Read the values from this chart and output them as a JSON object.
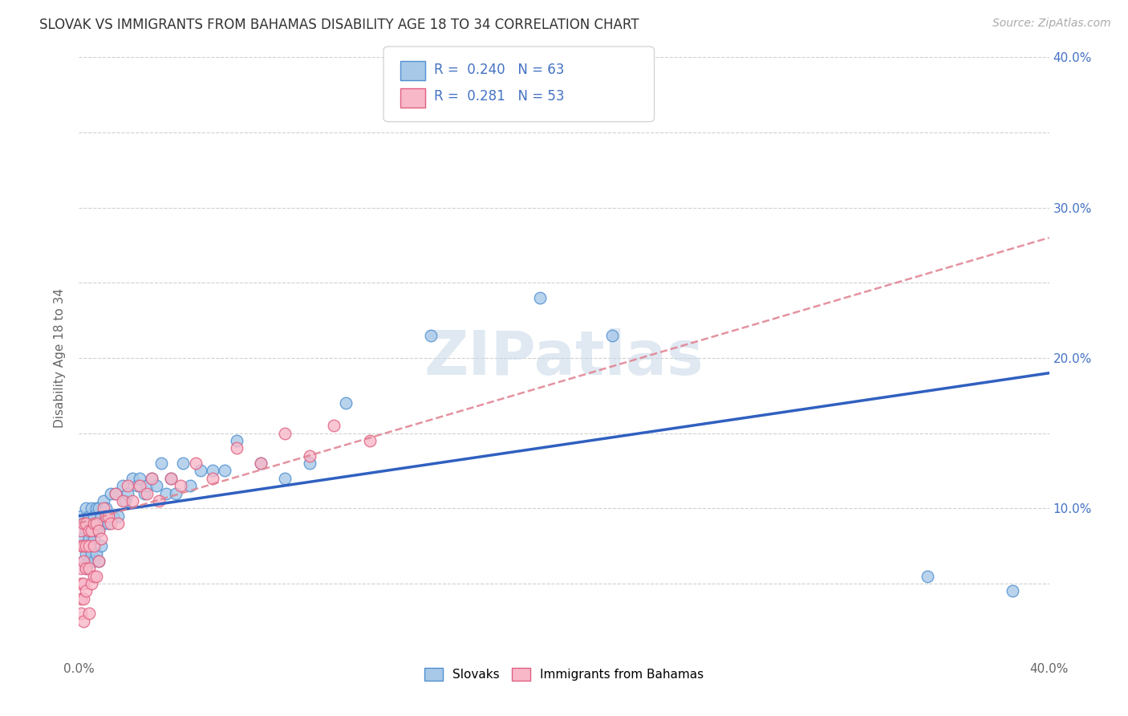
{
  "title": "SLOVAK VS IMMIGRANTS FROM BAHAMAS DISABILITY AGE 18 TO 34 CORRELATION CHART",
  "source": "Source: ZipAtlas.com",
  "ylabel": "Disability Age 18 to 34",
  "xlim": [
    0.0,
    0.4
  ],
  "ylim": [
    0.0,
    0.4
  ],
  "grid_color": "#d0d0d0",
  "background_color": "#ffffff",
  "watermark": "ZIPatlas",
  "legend_R1": "0.240",
  "legend_N1": "63",
  "legend_R2": "0.281",
  "legend_N2": "53",
  "color_slovak_fill": "#a8c8e8",
  "color_slovak_edge": "#5090d0",
  "color_bahamas_fill": "#f8b8c8",
  "color_bahamas_edge": "#e06080",
  "color_line_slovak": "#3060c0",
  "color_line_bahamas": "#e08090",
  "slovak_x": [
    0.001,
    0.001,
    0.002,
    0.002,
    0.002,
    0.003,
    0.003,
    0.003,
    0.003,
    0.004,
    0.004,
    0.004,
    0.005,
    0.005,
    0.005,
    0.006,
    0.006,
    0.006,
    0.007,
    0.007,
    0.007,
    0.008,
    0.008,
    0.008,
    0.009,
    0.009,
    0.01,
    0.01,
    0.011,
    0.012,
    0.013,
    0.014,
    0.015,
    0.016,
    0.018,
    0.019,
    0.02,
    0.022,
    0.024,
    0.025,
    0.027,
    0.028,
    0.03,
    0.032,
    0.034,
    0.036,
    0.038,
    0.04,
    0.043,
    0.046,
    0.05,
    0.055,
    0.06,
    0.065,
    0.075,
    0.085,
    0.095,
    0.11,
    0.145,
    0.19,
    0.22,
    0.35,
    0.385
  ],
  "slovak_y": [
    0.095,
    0.08,
    0.09,
    0.075,
    0.065,
    0.1,
    0.085,
    0.07,
    0.06,
    0.095,
    0.08,
    0.065,
    0.1,
    0.085,
    0.07,
    0.095,
    0.08,
    0.065,
    0.1,
    0.085,
    0.07,
    0.1,
    0.085,
    0.065,
    0.095,
    0.075,
    0.105,
    0.09,
    0.1,
    0.09,
    0.11,
    0.095,
    0.11,
    0.095,
    0.115,
    0.105,
    0.11,
    0.12,
    0.115,
    0.12,
    0.11,
    0.115,
    0.12,
    0.115,
    0.13,
    0.11,
    0.12,
    0.11,
    0.13,
    0.115,
    0.125,
    0.125,
    0.125,
    0.145,
    0.13,
    0.12,
    0.13,
    0.17,
    0.215,
    0.24,
    0.215,
    0.055,
    0.045
  ],
  "bahamas_x": [
    0.001,
    0.001,
    0.001,
    0.001,
    0.001,
    0.001,
    0.002,
    0.002,
    0.002,
    0.002,
    0.002,
    0.002,
    0.003,
    0.003,
    0.003,
    0.003,
    0.004,
    0.004,
    0.004,
    0.004,
    0.005,
    0.005,
    0.006,
    0.006,
    0.006,
    0.007,
    0.007,
    0.008,
    0.008,
    0.009,
    0.01,
    0.011,
    0.012,
    0.013,
    0.015,
    0.016,
    0.018,
    0.02,
    0.022,
    0.025,
    0.028,
    0.03,
    0.033,
    0.038,
    0.042,
    0.048,
    0.055,
    0.065,
    0.075,
    0.085,
    0.095,
    0.105,
    0.12
  ],
  "bahamas_y": [
    0.085,
    0.075,
    0.06,
    0.05,
    0.04,
    0.03,
    0.09,
    0.075,
    0.065,
    0.05,
    0.04,
    0.025,
    0.09,
    0.075,
    0.06,
    0.045,
    0.085,
    0.075,
    0.06,
    0.03,
    0.085,
    0.05,
    0.09,
    0.075,
    0.055,
    0.09,
    0.055,
    0.085,
    0.065,
    0.08,
    0.1,
    0.095,
    0.095,
    0.09,
    0.11,
    0.09,
    0.105,
    0.115,
    0.105,
    0.115,
    0.11,
    0.12,
    0.105,
    0.12,
    0.115,
    0.13,
    0.12,
    0.14,
    0.13,
    0.15,
    0.135,
    0.155,
    0.145
  ]
}
